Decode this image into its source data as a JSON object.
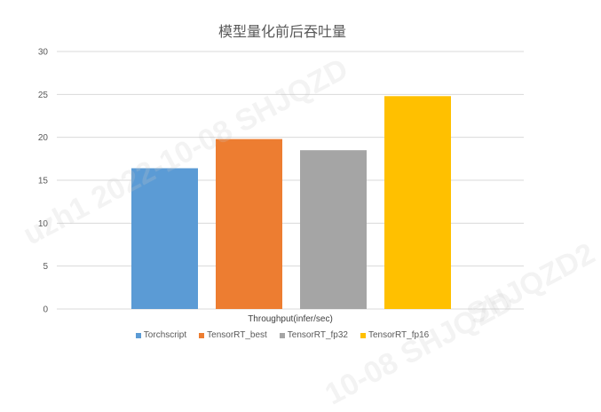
{
  "chart_data": {
    "type": "bar",
    "title": "模型量化前后吞吐量",
    "xlabel": "Throughput(infer/sec)",
    "ylabel": "",
    "ylim": [
      0,
      30
    ],
    "yticks": [
      0,
      5,
      10,
      15,
      20,
      25,
      30
    ],
    "grid": true,
    "legend_position": "bottom",
    "series": [
      {
        "name": "Torchscript",
        "values": [
          16.4
        ],
        "color": "#5B9BD5"
      },
      {
        "name": "TensorRT_best",
        "values": [
          19.8
        ],
        "color": "#ED7D31"
      },
      {
        "name": "TensorRT_fp32",
        "values": [
          18.5
        ],
        "color": "#A5A5A5"
      },
      {
        "name": "TensorRT_fp16",
        "values": [
          24.8
        ],
        "color": "#FFC000"
      }
    ]
  },
  "watermark": {
    "lines": [
      "uzh1 2022-10-08 SHJQZD",
      "SHJQZD2",
      "10-08 SHJQZD"
    ]
  }
}
